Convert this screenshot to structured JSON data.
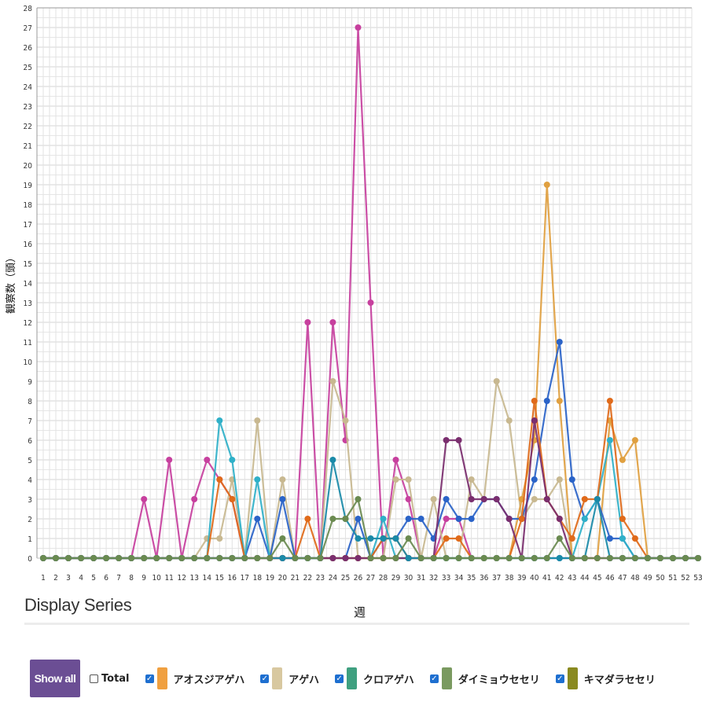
{
  "chart_data": {
    "type": "line",
    "title": "",
    "xlabel": "週",
    "ylabel": "観察数（頭）",
    "xlim": [
      1,
      53
    ],
    "ylim": [
      0,
      28
    ],
    "x": [
      1,
      2,
      3,
      4,
      5,
      6,
      7,
      8,
      9,
      10,
      11,
      12,
      13,
      14,
      15,
      16,
      17,
      18,
      19,
      20,
      21,
      22,
      23,
      24,
      25,
      26,
      27,
      28,
      29,
      30,
      31,
      32,
      33,
      34,
      35,
      36,
      37,
      38,
      39,
      40,
      41,
      42,
      43,
      44,
      45,
      46,
      47,
      48,
      49,
      50,
      51,
      52,
      53
    ],
    "grid": true,
    "series": [
      {
        "name": "",
        "color": "#c7409e",
        "values": [
          0,
          0,
          0,
          0,
          0,
          0,
          0,
          0,
          3,
          0,
          5,
          0,
          3,
          5,
          4,
          3,
          0,
          0,
          0,
          0,
          0,
          12,
          0,
          12,
          6,
          27,
          13,
          0,
          5,
          3,
          0,
          0,
          2,
          2,
          0,
          0,
          0,
          0,
          0,
          0,
          0,
          0,
          0,
          0,
          0,
          0,
          0,
          0,
          0,
          0,
          0,
          0,
          0
        ]
      },
      {
        "name": "",
        "color": "#c8b890",
        "values": [
          0,
          0,
          0,
          0,
          0,
          0,
          0,
          0,
          0,
          0,
          0,
          0,
          0,
          1,
          1,
          4,
          0,
          7,
          0,
          4,
          0,
          0,
          0,
          9,
          7,
          0,
          0,
          0,
          4,
          4,
          0,
          3,
          0,
          0,
          4,
          3,
          9,
          7,
          2,
          3,
          3,
          4,
          0,
          0,
          0,
          0,
          0,
          0,
          0,
          0,
          0,
          0,
          0
        ]
      },
      {
        "name": "",
        "color": "#e0a040",
        "values": [
          0,
          0,
          0,
          0,
          0,
          0,
          0,
          0,
          0,
          0,
          0,
          0,
          0,
          0,
          0,
          0,
          0,
          0,
          0,
          0,
          0,
          0,
          0,
          0,
          0,
          0,
          0,
          0,
          0,
          0,
          0,
          0,
          0,
          0,
          0,
          0,
          0,
          0,
          3,
          6,
          19,
          8,
          0,
          0,
          0,
          7,
          5,
          6,
          0,
          0,
          0,
          0,
          0
        ]
      },
      {
        "name": "",
        "color": "#2a63c8",
        "values": [
          0,
          0,
          0,
          0,
          0,
          0,
          0,
          0,
          0,
          0,
          0,
          0,
          0,
          0,
          0,
          0,
          0,
          2,
          0,
          3,
          0,
          0,
          0,
          0,
          0,
          2,
          0,
          1,
          1,
          2,
          2,
          1,
          3,
          2,
          2,
          3,
          3,
          2,
          2,
          4,
          8,
          11,
          4,
          2,
          3,
          1,
          1,
          0,
          0,
          0,
          0,
          0,
          0
        ]
      },
      {
        "name": "",
        "color": "#2fb0c8",
        "values": [
          0,
          0,
          0,
          0,
          0,
          0,
          0,
          0,
          0,
          0,
          0,
          0,
          0,
          0,
          7,
          5,
          0,
          4,
          0,
          0,
          0,
          0,
          0,
          0,
          0,
          0,
          0,
          2,
          0,
          0,
          0,
          0,
          0,
          0,
          0,
          0,
          0,
          0,
          0,
          0,
          0,
          0,
          0,
          2,
          3,
          6,
          1,
          0,
          0,
          0,
          0,
          0,
          0
        ]
      },
      {
        "name": "",
        "color": "#e06a1a",
        "values": [
          0,
          0,
          0,
          0,
          0,
          0,
          0,
          0,
          0,
          0,
          0,
          0,
          0,
          0,
          4,
          3,
          0,
          0,
          0,
          0,
          0,
          2,
          0,
          0,
          0,
          0,
          0,
          1,
          1,
          0,
          0,
          0,
          1,
          1,
          0,
          0,
          0,
          0,
          2,
          8,
          3,
          2,
          1,
          3,
          3,
          8,
          2,
          1,
          0,
          0,
          0,
          0,
          0
        ]
      },
      {
        "name": "",
        "color": "#7a2e6e",
        "values": [
          0,
          0,
          0,
          0,
          0,
          0,
          0,
          0,
          0,
          0,
          0,
          0,
          0,
          0,
          0,
          0,
          0,
          0,
          0,
          0,
          0,
          0,
          0,
          0,
          0,
          0,
          0,
          0,
          0,
          0,
          0,
          0,
          6,
          6,
          3,
          3,
          3,
          2,
          0,
          7,
          3,
          2,
          0,
          0,
          0,
          0,
          0,
          0,
          0,
          0,
          0,
          0,
          0
        ]
      },
      {
        "name": "",
        "color": "#1a8aa8",
        "values": [
          0,
          0,
          0,
          0,
          0,
          0,
          0,
          0,
          0,
          0,
          0,
          0,
          0,
          0,
          0,
          0,
          0,
          0,
          0,
          0,
          0,
          0,
          0,
          5,
          2,
          1,
          1,
          1,
          1,
          0,
          0,
          0,
          0,
          0,
          0,
          0,
          0,
          0,
          0,
          0,
          0,
          0,
          0,
          0,
          3,
          0,
          0,
          0,
          0,
          0,
          0,
          0,
          0
        ]
      },
      {
        "name": "",
        "color": "#6a8a50",
        "values": [
          0,
          0,
          0,
          0,
          0,
          0,
          0,
          0,
          0,
          0,
          0,
          0,
          0,
          0,
          0,
          0,
          0,
          0,
          0,
          1,
          0,
          0,
          0,
          2,
          2,
          3,
          0,
          0,
          0,
          1,
          0,
          0,
          0,
          0,
          0,
          0,
          0,
          0,
          0,
          0,
          0,
          1,
          0,
          0,
          0,
          0,
          0,
          0,
          0,
          0,
          0,
          0,
          0
        ]
      }
    ]
  },
  "panel": {
    "title": "Display Series",
    "show_all_label": "Show all",
    "legend": [
      {
        "label": "Total",
        "checked": false,
        "color": ""
      },
      {
        "label": "アオスジアゲハ",
        "checked": true,
        "color": "#f0a040"
      },
      {
        "label": "アゲハ",
        "checked": true,
        "color": "#d8c8a0"
      },
      {
        "label": "クロアゲハ",
        "checked": true,
        "color": "#3fa080"
      },
      {
        "label": "ダイミョウセセリ",
        "checked": true,
        "color": "#7a9a60"
      },
      {
        "label": "キマダラセセリ",
        "checked": true,
        "color": "#8a8a20"
      }
    ]
  }
}
